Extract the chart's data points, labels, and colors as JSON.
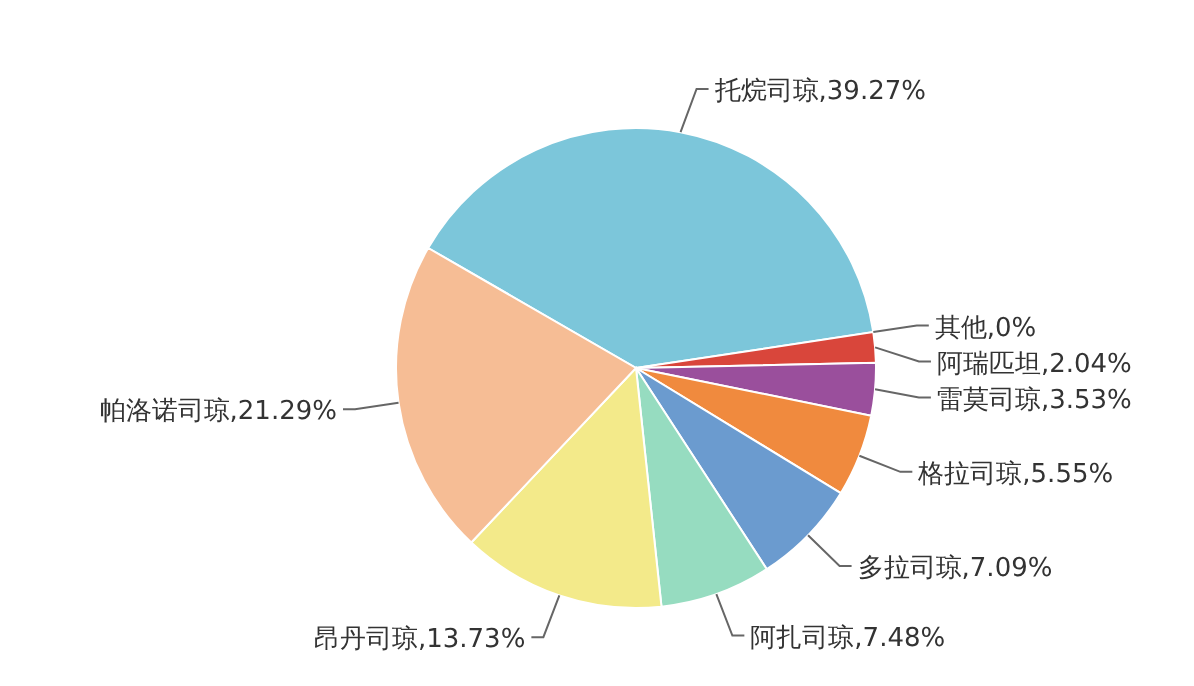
{
  "chart_data": {
    "type": "pie",
    "categories": [
      "托烷司琼",
      "其他",
      "阿瑞匹坦",
      "雷莫司琼",
      "格拉司琼",
      "多拉司琼",
      "阿扎司琼",
      "昂丹司琼",
      "帕洛诺司琼"
    ],
    "values": [
      39.27,
      0,
      2.04,
      3.53,
      5.55,
      7.09,
      7.48,
      13.73,
      21.29
    ],
    "colors": [
      "#7cc6da",
      null,
      "#d9463b",
      "#9a4f9c",
      "#f08a3e",
      "#6b9bcf",
      "#96dcc0",
      "#f3ea8a",
      "#f6bd95"
    ],
    "value_labels": [
      ",39.27%",
      ",0%",
      ",2.04%",
      ",3.53%",
      ",5.55%",
      ",7.09%",
      ",7.48%",
      ",13.73%",
      ",21.29%"
    ]
  }
}
